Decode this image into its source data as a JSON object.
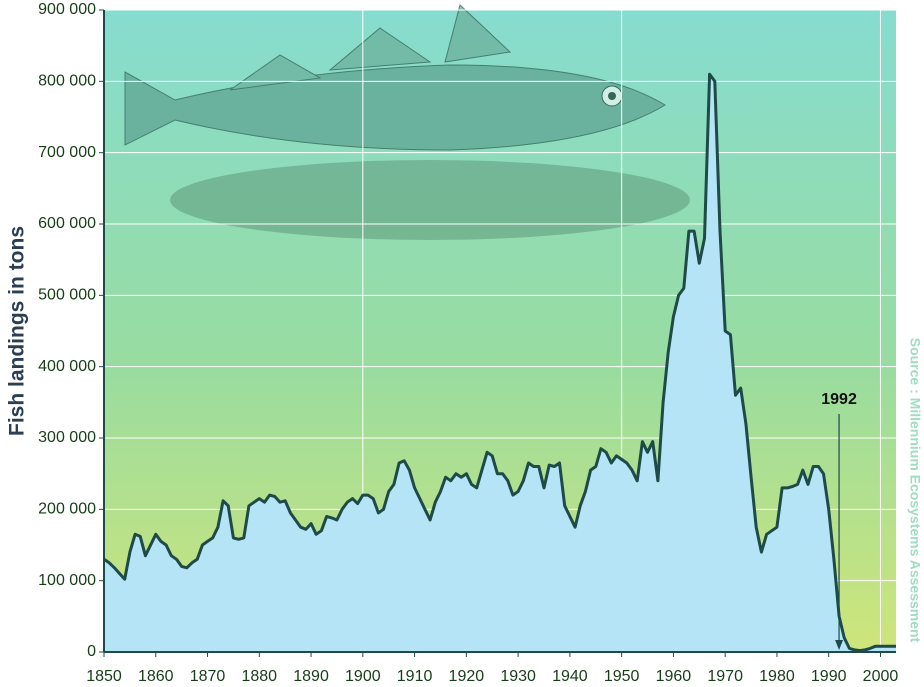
{
  "chart_data": {
    "type": "area",
    "ylabel": "Fish landings in tons",
    "source": "Source : Millennium Ecosystems Assessment",
    "x": [
      1850,
      1851,
      1852,
      1853,
      1854,
      1855,
      1856,
      1857,
      1858,
      1859,
      1860,
      1861,
      1862,
      1863,
      1864,
      1865,
      1866,
      1867,
      1868,
      1869,
      1870,
      1871,
      1872,
      1873,
      1874,
      1875,
      1876,
      1877,
      1878,
      1879,
      1880,
      1881,
      1882,
      1883,
      1884,
      1885,
      1886,
      1887,
      1888,
      1889,
      1890,
      1891,
      1892,
      1893,
      1894,
      1895,
      1896,
      1897,
      1898,
      1899,
      1900,
      1901,
      1902,
      1903,
      1904,
      1905,
      1906,
      1907,
      1908,
      1909,
      1910,
      1911,
      1912,
      1913,
      1914,
      1915,
      1916,
      1917,
      1918,
      1919,
      1920,
      1921,
      1922,
      1923,
      1924,
      1925,
      1926,
      1927,
      1928,
      1929,
      1930,
      1931,
      1932,
      1933,
      1934,
      1935,
      1936,
      1937,
      1938,
      1939,
      1940,
      1941,
      1942,
      1943,
      1944,
      1945,
      1946,
      1947,
      1948,
      1949,
      1950,
      1951,
      1952,
      1953,
      1954,
      1955,
      1956,
      1957,
      1958,
      1959,
      1960,
      1961,
      1962,
      1963,
      1964,
      1965,
      1966,
      1967,
      1968,
      1969,
      1970,
      1971,
      1972,
      1973,
      1974,
      1975,
      1976,
      1977,
      1978,
      1979,
      1980,
      1981,
      1982,
      1983,
      1984,
      1985,
      1986,
      1987,
      1988,
      1989,
      1990,
      1991,
      1992,
      1993,
      1994,
      1995,
      1996,
      1997,
      1998,
      1999,
      2000,
      2001,
      2002,
      2003
    ],
    "values": [
      130000,
      125000,
      118000,
      110000,
      102000,
      140000,
      165000,
      162000,
      135000,
      150000,
      165000,
      155000,
      150000,
      135000,
      130000,
      120000,
      118000,
      125000,
      130000,
      150000,
      155000,
      160000,
      175000,
      212000,
      205000,
      160000,
      158000,
      160000,
      205000,
      210000,
      215000,
      210000,
      220000,
      218000,
      210000,
      212000,
      195000,
      185000,
      175000,
      172000,
      180000,
      165000,
      170000,
      190000,
      188000,
      185000,
      200000,
      210000,
      215000,
      208000,
      220000,
      220000,
      215000,
      195000,
      200000,
      225000,
      235000,
      265000,
      268000,
      255000,
      230000,
      215000,
      200000,
      185000,
      210000,
      225000,
      245000,
      240000,
      250000,
      245000,
      250000,
      235000,
      230000,
      255000,
      280000,
      275000,
      250000,
      250000,
      240000,
      220000,
      225000,
      240000,
      265000,
      260000,
      260000,
      230000,
      262000,
      260000,
      265000,
      205000,
      190000,
      175000,
      205000,
      225000,
      255000,
      260000,
      285000,
      280000,
      265000,
      275000,
      270000,
      265000,
      255000,
      240000,
      295000,
      280000,
      295000,
      240000,
      350000,
      420000,
      470000,
      500000,
      510000,
      590000,
      590000,
      545000,
      580000,
      810000,
      800000,
      590000,
      450000,
      445000,
      360000,
      370000,
      320000,
      245000,
      175000,
      140000,
      165000,
      170000,
      175000,
      230000,
      230000,
      232000,
      235000,
      255000,
      235000,
      260000,
      260000,
      250000,
      200000,
      130000,
      50000,
      20000,
      5000,
      3000,
      2000,
      3000,
      5000,
      8000,
      8000,
      8000,
      8000,
      8000
    ],
    "color": "#b5e4f6",
    "line_color": "#1e4a48",
    "xlim": [
      1850,
      2003
    ],
    "xticks": [
      1850,
      1860,
      1870,
      1880,
      1890,
      1900,
      1910,
      1920,
      1930,
      1940,
      1950,
      1960,
      1970,
      1980,
      1990,
      2000
    ],
    "xgrid": [
      1900,
      1950,
      2000
    ],
    "ylim": [
      0,
      900000
    ],
    "yticks": [
      {
        "value": 0,
        "label": "0"
      },
      {
        "value": 100000,
        "label": "100 000"
      },
      {
        "value": 200000,
        "label": "200 000"
      },
      {
        "value": 300000,
        "label": "300 000"
      },
      {
        "value": 400000,
        "label": "400 000"
      },
      {
        "value": 500000,
        "label": "500 000"
      },
      {
        "value": 600000,
        "label": "600 000"
      },
      {
        "value": 700000,
        "label": "700 000"
      },
      {
        "value": 800000,
        "label": "800 000"
      },
      {
        "value": 900000,
        "label": "900 000"
      }
    ],
    "grid": true,
    "annotation": {
      "text": "1992",
      "x": 1992
    }
  }
}
